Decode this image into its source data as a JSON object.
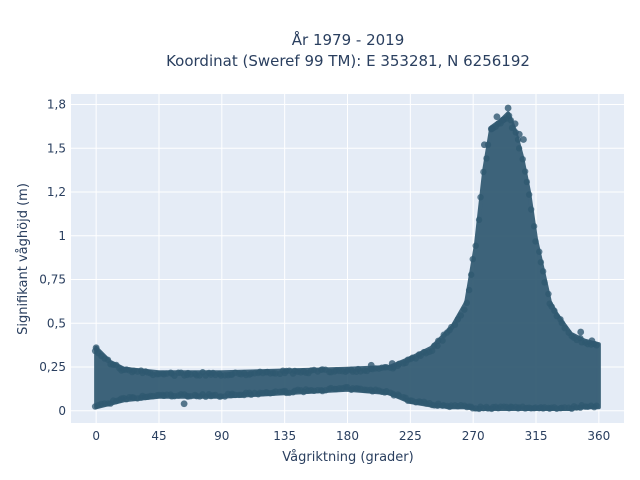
{
  "chart_data": {
    "type": "scatter",
    "title": "År 1979 - 2019",
    "subtitle": "Koordinat (Sweref 99 TM): E 353281, N 6256192",
    "xlabel": "Vågriktning (grader)",
    "ylabel": "Signifikant våghöjd (m)",
    "xlim": [
      -18,
      378
    ],
    "ylim": [
      -0.07,
      1.81
    ],
    "x_ticks": [
      0,
      45,
      90,
      135,
      180,
      225,
      270,
      315,
      360
    ],
    "x_tick_labels": [
      "0",
      "45",
      "90",
      "135",
      "180",
      "225",
      "270",
      "315",
      "360"
    ],
    "y_ticks": [
      0,
      0.25,
      0.5,
      0.75,
      1,
      1.25,
      1.5,
      1.75
    ],
    "y_tick_labels": [
      "0",
      "0,25",
      "0,5",
      "0,75",
      "1",
      "1,2",
      "1,5",
      "1,8"
    ],
    "grid": true,
    "colors": {
      "marker": "#2f5870",
      "plot_bg": "#e5ecf6",
      "grid": "#ffffff",
      "text": "#2a3f5f"
    },
    "envelope": [
      {
        "x": 0,
        "ymin": 0.02,
        "ymax": 0.36
      },
      {
        "x": 10,
        "ymin": 0.04,
        "ymax": 0.28
      },
      {
        "x": 20,
        "ymin": 0.06,
        "ymax": 0.24
      },
      {
        "x": 45,
        "ymin": 0.08,
        "ymax": 0.22
      },
      {
        "x": 90,
        "ymin": 0.08,
        "ymax": 0.22
      },
      {
        "x": 135,
        "ymin": 0.1,
        "ymax": 0.23
      },
      {
        "x": 180,
        "ymin": 0.12,
        "ymax": 0.24
      },
      {
        "x": 210,
        "ymin": 0.1,
        "ymax": 0.25
      },
      {
        "x": 225,
        "ymin": 0.05,
        "ymax": 0.3
      },
      {
        "x": 240,
        "ymin": 0.03,
        "ymax": 0.36
      },
      {
        "x": 255,
        "ymin": 0.02,
        "ymax": 0.48
      },
      {
        "x": 265,
        "ymin": 0.02,
        "ymax": 0.62
      },
      {
        "x": 272,
        "ymin": 0.01,
        "ymax": 0.95
      },
      {
        "x": 278,
        "ymin": 0.01,
        "ymax": 1.38
      },
      {
        "x": 283,
        "ymin": 0.01,
        "ymax": 1.62
      },
      {
        "x": 290,
        "ymin": 0.01,
        "ymax": 1.66
      },
      {
        "x": 295,
        "ymin": 0.01,
        "ymax": 1.7
      },
      {
        "x": 300,
        "ymin": 0.01,
        "ymax": 1.6
      },
      {
        "x": 305,
        "ymin": 0.01,
        "ymax": 1.45
      },
      {
        "x": 310,
        "ymin": 0.01,
        "ymax": 1.25
      },
      {
        "x": 315,
        "ymin": 0.01,
        "ymax": 0.98
      },
      {
        "x": 320,
        "ymin": 0.01,
        "ymax": 0.8
      },
      {
        "x": 325,
        "ymin": 0.01,
        "ymax": 0.62
      },
      {
        "x": 330,
        "ymin": 0.01,
        "ymax": 0.55
      },
      {
        "x": 340,
        "ymin": 0.01,
        "ymax": 0.44
      },
      {
        "x": 350,
        "ymin": 0.02,
        "ymax": 0.4
      },
      {
        "x": 360,
        "ymin": 0.02,
        "ymax": 0.38
      }
    ],
    "peak_points": [
      {
        "x": 295,
        "y": 1.73
      },
      {
        "x": 287,
        "y": 1.68
      },
      {
        "x": 291,
        "y": 1.66
      },
      {
        "x": 300,
        "y": 1.64
      },
      {
        "x": 283,
        "y": 1.61
      },
      {
        "x": 303,
        "y": 1.58
      },
      {
        "x": 278,
        "y": 1.52
      },
      {
        "x": 306,
        "y": 1.55
      }
    ],
    "outlier_points": [
      {
        "x": 0,
        "y": 0.36
      },
      {
        "x": 63,
        "y": 0.04
      },
      {
        "x": 197,
        "y": 0.26
      },
      {
        "x": 212,
        "y": 0.27
      },
      {
        "x": 347,
        "y": 0.45
      },
      {
        "x": 355,
        "y": 0.4
      }
    ]
  }
}
